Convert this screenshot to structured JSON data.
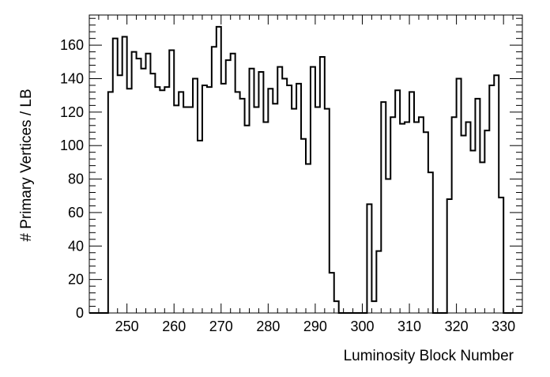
{
  "chart_data": {
    "type": "bar",
    "style": "step-histogram",
    "title": "",
    "xlabel": "Luminosity Block Number",
    "ylabel": "# Primary Vertices / LB",
    "xlim": [
      242,
      334
    ],
    "ylim": [
      0,
      178
    ],
    "grid": false,
    "legend": "none",
    "line_color": "#000000",
    "x_ticks": [
      250,
      260,
      270,
      280,
      290,
      300,
      310,
      320,
      330
    ],
    "x_tick_labels": [
      "250",
      "260",
      "270",
      "280",
      "290",
      "300",
      "310",
      "320",
      "330"
    ],
    "y_ticks": [
      0,
      20,
      40,
      60,
      80,
      100,
      120,
      140,
      160
    ],
    "y_tick_labels": [
      "0",
      "20",
      "40",
      "60",
      "80",
      "100",
      "120",
      "140",
      "160"
    ],
    "bin_width": 1,
    "x": [
      242,
      243,
      244,
      245,
      246,
      247,
      248,
      249,
      250,
      251,
      252,
      253,
      254,
      255,
      256,
      257,
      258,
      259,
      260,
      261,
      262,
      263,
      264,
      265,
      266,
      267,
      268,
      269,
      270,
      271,
      272,
      273,
      274,
      275,
      276,
      277,
      278,
      279,
      280,
      281,
      282,
      283,
      284,
      285,
      286,
      287,
      288,
      289,
      290,
      291,
      292,
      293,
      294,
      295,
      296,
      297,
      298,
      299,
      300,
      301,
      302,
      303,
      304,
      305,
      306,
      307,
      308,
      309,
      310,
      311,
      312,
      313,
      314,
      315,
      316,
      317,
      318,
      319,
      320,
      321,
      322,
      323,
      324,
      325,
      326,
      327,
      328,
      329,
      330,
      331,
      332,
      333
    ],
    "values": [
      0,
      0,
      0,
      0,
      132,
      164,
      142,
      165,
      134,
      156,
      152,
      146,
      155,
      143,
      135,
      133,
      135,
      157,
      124,
      132,
      123,
      123,
      140,
      103,
      136,
      135,
      159,
      171,
      137,
      151,
      155,
      132,
      128,
      112,
      146,
      123,
      144,
      114,
      134,
      125,
      147,
      140,
      136,
      122,
      137,
      104,
      89,
      147,
      123,
      153,
      122,
      24,
      7,
      0,
      0,
      0,
      0,
      0,
      0,
      65,
      7,
      37,
      126,
      80,
      117,
      133,
      113,
      114,
      132,
      114,
      117,
      108,
      84,
      0,
      0,
      0,
      68,
      117,
      140,
      106,
      114,
      97,
      128,
      90,
      109,
      136,
      142,
      69,
      0,
      0,
      0,
      0
    ]
  }
}
